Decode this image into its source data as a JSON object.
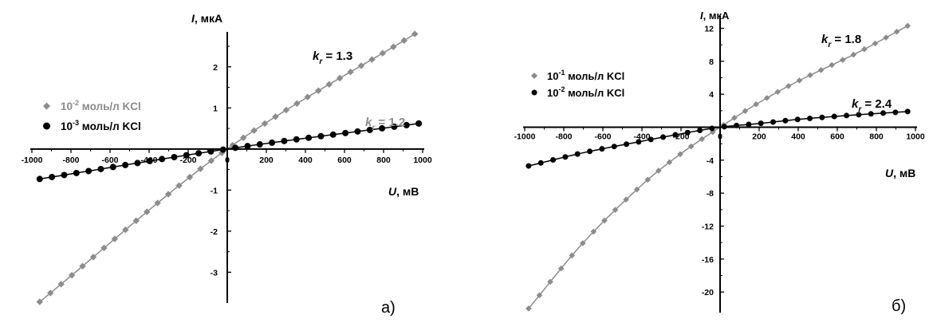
{
  "colors": {
    "gray": "#8c8c8c",
    "black": "#000000"
  },
  "chart_data": [
    {
      "type": "line",
      "panel": "а)",
      "ylabel_var": "I",
      "ylabel_unit": ", мкА",
      "xlabel_var": "U",
      "xlabel_unit": ", мВ",
      "xlim": [
        -1000,
        1000
      ],
      "ylim": [
        -3.75,
        2.85
      ],
      "xticks": [
        -1000,
        -800,
        -600,
        -400,
        -200,
        0,
        200,
        400,
        600,
        800,
        1000
      ],
      "yticks": [
        -3,
        -2,
        -1,
        0,
        1,
        2
      ],
      "series": [
        {
          "name_base": "10",
          "name_exp": "-2",
          "name_rest": " моль/л KCl",
          "color": "#8c8c8c",
          "marker": "diamond",
          "points": [
            [
              -960,
              -3.72
            ],
            [
              0,
              0.0
            ],
            [
              960,
              2.8
            ]
          ]
        },
        {
          "name_base": "10",
          "name_exp": "-3",
          "name_rest": " моль/л KCl",
          "color": "#000000",
          "marker": "circle",
          "points": [
            [
              -960,
              -0.73
            ],
            [
              0,
              0.0
            ],
            [
              980,
              0.62
            ]
          ]
        }
      ],
      "annotations": [
        {
          "k_main": "k",
          "k_sub": "r",
          "k_value": " = 1.3",
          "series_index": 0
        },
        {
          "k_main": "k",
          "k_sub": "r",
          "k_value": " = 1.2",
          "series_index": 1
        }
      ]
    },
    {
      "type": "line",
      "panel": "б)",
      "ylabel_var": "I",
      "ylabel_unit": ", мкА",
      "xlabel_var": "U",
      "xlabel_unit": ", мВ",
      "xlim": [
        -1000,
        1000
      ],
      "ylim": [
        -22.5,
        13.5
      ],
      "xticks": [
        -1000,
        -800,
        -600,
        -400,
        -200,
        0,
        200,
        400,
        600,
        800,
        1000
      ],
      "yticks": [
        -20,
        -16,
        -12,
        -8,
        -4,
        0,
        4,
        8,
        12
      ],
      "series": [
        {
          "name_base": "10",
          "name_exp": "-1",
          "name_rest": " моль/л KCl",
          "color": "#8c8c8c",
          "marker": "diamond",
          "points": [
            [
              -980,
              -22.0
            ],
            [
              -700,
              -14.0
            ],
            [
              -400,
              -7.0
            ],
            [
              -200,
              -3.2
            ],
            [
              0,
              0.0
            ],
            [
              200,
              3.0
            ],
            [
              400,
              5.6
            ],
            [
              700,
              9.0
            ],
            [
              960,
              12.3
            ]
          ]
        },
        {
          "name_base": "10",
          "name_exp": "-2",
          "name_rest": " моль/л KCl",
          "color": "#000000",
          "marker": "circle",
          "points": [
            [
              -980,
              -4.7
            ],
            [
              -700,
              -3.1
            ],
            [
              -400,
              -1.7
            ],
            [
              -200,
              -0.8
            ],
            [
              0,
              0.0
            ],
            [
              200,
              0.45
            ],
            [
              400,
              0.95
            ],
            [
              700,
              1.5
            ],
            [
              960,
              1.9
            ]
          ]
        }
      ],
      "annotations": [
        {
          "k_main": "k",
          "k_sub": "r",
          "k_value": " = 1.8",
          "series_index": 0
        },
        {
          "k_main": "k",
          "k_sub": "r",
          "k_value": " = 2.4",
          "series_index": 1
        }
      ]
    }
  ]
}
